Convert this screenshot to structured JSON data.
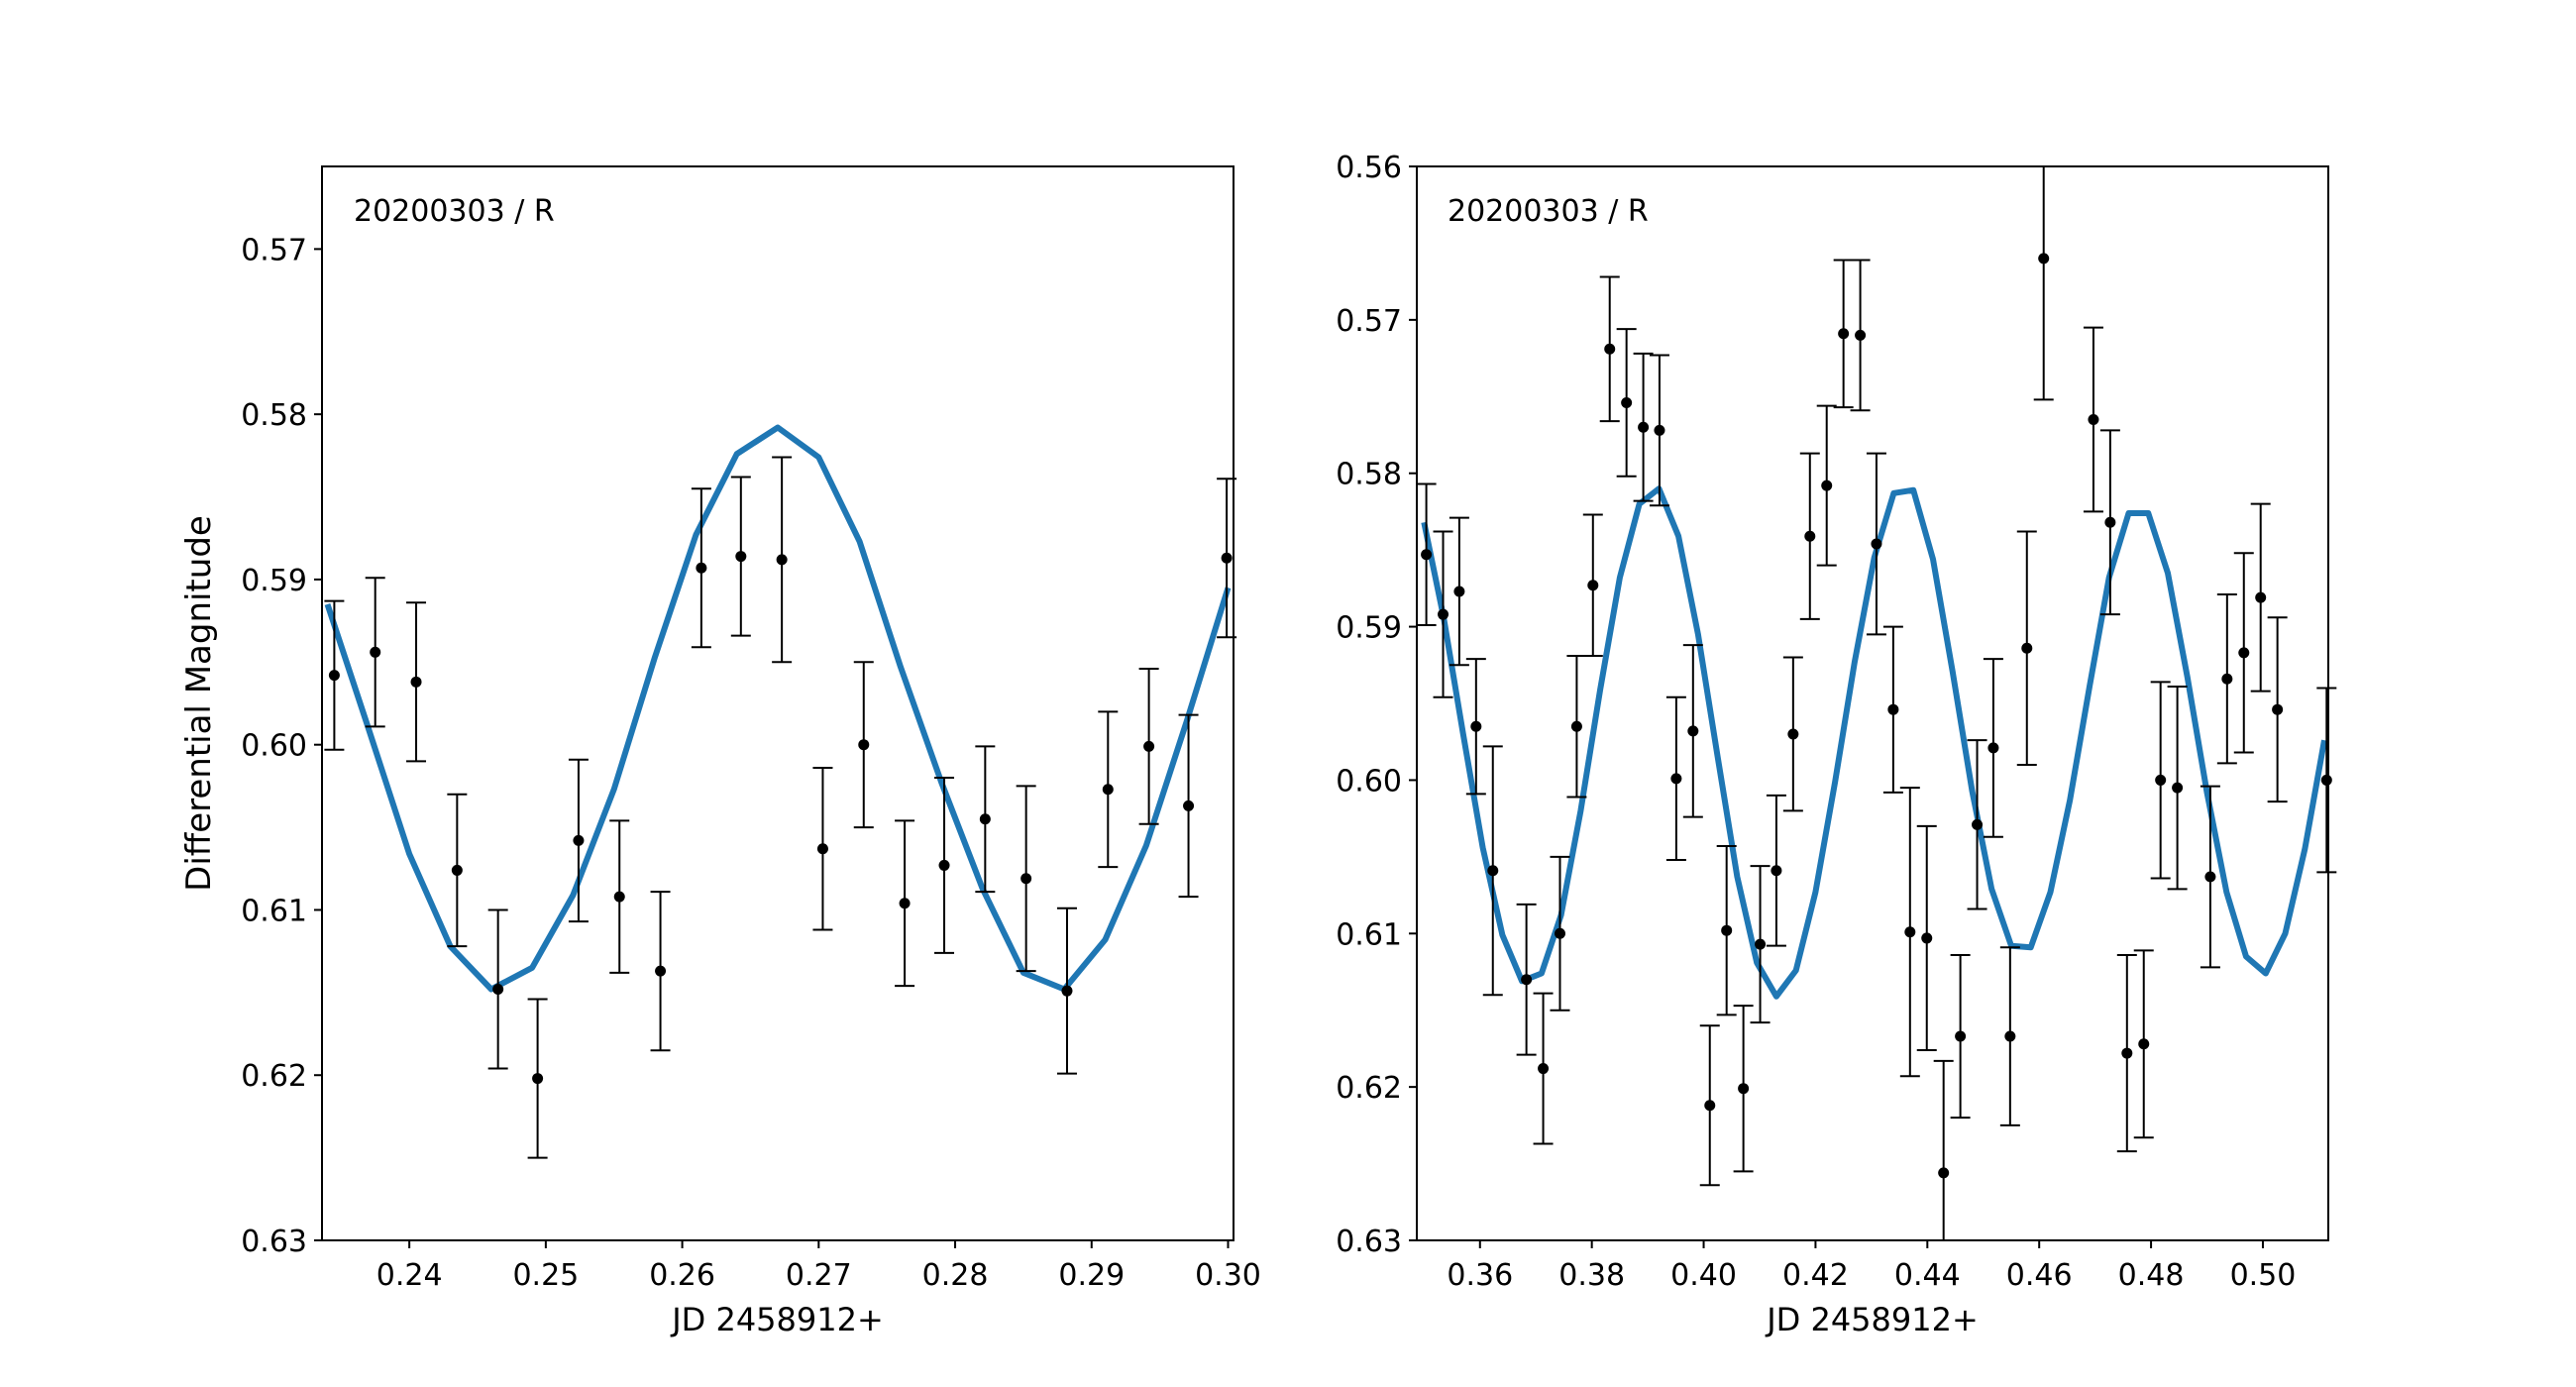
{
  "figure": {
    "ylabel": "Differential Magnitude",
    "point_color": "#000000",
    "fit_color": "#1f77b4"
  },
  "chart_data": [
    {
      "type": "scatter",
      "annotation": "20200303 / R",
      "xlabel": "JD 2458912+",
      "ylabel": "Differential Magnitude",
      "xlim": [
        0.2336,
        0.3004
      ],
      "ylim": [
        0.63,
        0.565
      ],
      "y_inverted": true,
      "xticks": [
        0.24,
        0.25,
        0.26,
        0.27,
        0.28,
        0.29,
        0.3
      ],
      "xtick_labels": [
        "0.24",
        "0.25",
        "0.26",
        "0.27",
        "0.28",
        "0.29",
        "0.30"
      ],
      "yticks": [
        0.57,
        0.58,
        0.59,
        0.6,
        0.61,
        0.62,
        0.63
      ],
      "ytick_labels": [
        "0.57",
        "0.58",
        "0.59",
        "0.60",
        "0.61",
        "0.62",
        "0.63"
      ],
      "points": {
        "x": [
          0.2345,
          0.2375,
          0.2405,
          0.2435,
          0.2465,
          0.2494,
          0.2524,
          0.2554,
          0.2584,
          0.2614,
          0.2643,
          0.2673,
          0.2703,
          0.2733,
          0.2763,
          0.2792,
          0.2822,
          0.2852,
          0.2882,
          0.2912,
          0.2942,
          0.2971,
          0.2999
        ],
        "y": [
          0.5958,
          0.5944,
          0.5962,
          0.6076,
          0.6148,
          0.6202,
          0.6058,
          0.6092,
          0.6137,
          0.5893,
          0.5886,
          0.5888,
          0.6063,
          0.6,
          0.6096,
          0.6073,
          0.6045,
          0.6081,
          0.6149,
          0.6027,
          0.6001,
          0.6037,
          0.5887
        ],
        "err": [
          0.0045,
          0.0045,
          0.0048,
          0.0046,
          0.0048,
          0.0048,
          0.0049,
          0.0046,
          0.0048,
          0.0048,
          0.0048,
          0.0062,
          0.0049,
          0.005,
          0.005,
          0.0053,
          0.0044,
          0.0056,
          0.005,
          0.0047,
          0.0047,
          0.0055,
          0.0048
        ]
      },
      "fit": {
        "x": [
          0.234,
          0.237,
          0.24,
          0.243,
          0.246,
          0.249,
          0.252,
          0.255,
          0.258,
          0.261,
          0.264,
          0.267,
          0.27,
          0.273,
          0.276,
          0.279,
          0.282,
          0.285,
          0.288,
          0.291,
          0.294,
          0.297,
          0.3
        ],
        "y": [
          0.5915,
          0.599,
          0.6066,
          0.6122,
          0.6148,
          0.6135,
          0.6091,
          0.6027,
          0.5947,
          0.5873,
          0.5824,
          0.5808,
          0.5826,
          0.5877,
          0.5953,
          0.6023,
          0.6087,
          0.6138,
          0.6148,
          0.6118,
          0.6061,
          0.5985,
          0.5905
        ]
      }
    },
    {
      "type": "scatter",
      "annotation": "20200303 / R",
      "xlabel": "JD 2458912+",
      "ylabel": "",
      "xlim": [
        0.3487,
        0.5117
      ],
      "ylim": [
        0.63,
        0.56
      ],
      "y_inverted": true,
      "xticks": [
        0.36,
        0.38,
        0.4,
        0.42,
        0.44,
        0.46,
        0.48,
        0.5
      ],
      "xtick_labels": [
        "0.36",
        "0.38",
        "0.40",
        "0.42",
        "0.44",
        "0.46",
        "0.48",
        "0.50"
      ],
      "yticks": [
        0.56,
        0.57,
        0.58,
        0.59,
        0.6,
        0.61,
        0.62,
        0.63
      ],
      "ytick_labels": [
        "0.56",
        "0.57",
        "0.58",
        "0.59",
        "0.60",
        "0.61",
        "0.62",
        "0.63"
      ],
      "points": {
        "x": [
          0.3504,
          0.3534,
          0.3563,
          0.3593,
          0.3623,
          0.3683,
          0.3713,
          0.3743,
          0.3773,
          0.3802,
          0.3832,
          0.3862,
          0.3892,
          0.3921,
          0.3951,
          0.3981,
          0.4011,
          0.4041,
          0.4071,
          0.4101,
          0.413,
          0.416,
          0.419,
          0.422,
          0.425,
          0.428,
          0.4309,
          0.4339,
          0.4369,
          0.4399,
          0.4429,
          0.4459,
          0.4489,
          0.4518,
          0.4548,
          0.4578,
          0.4608,
          0.4697,
          0.4727,
          0.4757,
          0.4787,
          0.4817,
          0.4847,
          0.4906,
          0.4936,
          0.4966,
          0.4996,
          0.5026,
          0.5114
        ],
        "y": [
          0.5853,
          0.5892,
          0.5877,
          0.5965,
          0.6059,
          0.613,
          0.6188,
          0.61,
          0.5965,
          0.5873,
          0.5719,
          0.5754,
          0.577,
          0.5772,
          0.5999,
          0.5968,
          0.6212,
          0.6098,
          0.6201,
          0.6107,
          0.6059,
          0.597,
          0.5841,
          0.5808,
          0.5709,
          0.571,
          0.5846,
          0.5954,
          0.6099,
          0.6103,
          0.6256,
          0.6167,
          0.6029,
          0.5979,
          0.6167,
          0.5914,
          0.566,
          0.5765,
          0.5832,
          0.6178,
          0.6172,
          0.6,
          0.6005,
          0.6063,
          0.5934,
          0.5917,
          0.5881,
          0.5954,
          0.6
        ],
        "err": [
          0.0046,
          0.0054,
          0.0048,
          0.0044,
          0.0081,
          0.0049,
          0.0049,
          0.005,
          0.0046,
          0.0046,
          0.0047,
          0.0048,
          0.0048,
          0.0049,
          0.0053,
          0.0056,
          0.0052,
          0.0055,
          0.0054,
          0.0051,
          0.0049,
          0.005,
          0.0054,
          0.0052,
          0.0048,
          0.0049,
          0.0059,
          0.0054,
          0.0094,
          0.0073,
          0.0073,
          0.0053,
          0.0055,
          0.0058,
          0.0058,
          0.0076,
          0.0092,
          0.006,
          0.006,
          0.0064,
          0.0061,
          0.0064,
          0.0066,
          0.0059,
          0.0055,
          0.0065,
          0.0061,
          0.006,
          0.006
        ]
      },
      "fit": {
        "x": [
          0.35,
          0.3535,
          0.357,
          0.3605,
          0.364,
          0.3675,
          0.371,
          0.3745,
          0.378,
          0.3815,
          0.385,
          0.3885,
          0.392,
          0.3955,
          0.399,
          0.4025,
          0.406,
          0.4095,
          0.413,
          0.4165,
          0.42,
          0.4235,
          0.427,
          0.4305,
          0.434,
          0.4375,
          0.441,
          0.4445,
          0.448,
          0.4515,
          0.455,
          0.4585,
          0.462,
          0.4655,
          0.469,
          0.4725,
          0.476,
          0.4795,
          0.483,
          0.4865,
          0.49,
          0.4935,
          0.497,
          0.5005,
          0.504,
          0.5075,
          0.511
        ],
        "y": [
          0.5832,
          0.5894,
          0.597,
          0.6044,
          0.6101,
          0.6131,
          0.6126,
          0.6088,
          0.602,
          0.5941,
          0.5868,
          0.582,
          0.581,
          0.5841,
          0.5905,
          0.5985,
          0.6063,
          0.6119,
          0.6141,
          0.6124,
          0.6073,
          0.6001,
          0.5923,
          0.5855,
          0.5813,
          0.5811,
          0.5856,
          0.5929,
          0.6007,
          0.6071,
          0.6108,
          0.6109,
          0.6073,
          0.6013,
          0.5939,
          0.5868,
          0.5826,
          0.5826,
          0.5865,
          0.5933,
          0.6008,
          0.6073,
          0.6115,
          0.6126,
          0.61,
          0.6045,
          0.5974
        ]
      }
    }
  ]
}
